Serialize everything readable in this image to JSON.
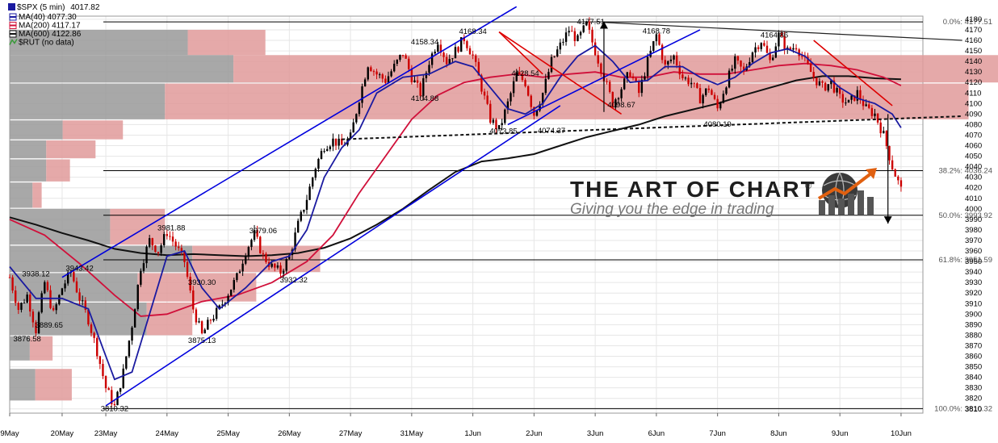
{
  "header": {
    "symbol": "$SPX (5 min)",
    "last": "4017.82",
    "legend": [
      {
        "label": "MA(40)",
        "value": "4077.30",
        "color": "#1a1aa0"
      },
      {
        "label": "MA(200)",
        "value": "4117.17",
        "color": "#d0103a"
      },
      {
        "label": "MA(600)",
        "value": "4122.86",
        "color": "#111111"
      },
      {
        "label": "$RUT (no data)",
        "value": "",
        "color": "#3a9a3a"
      }
    ]
  },
  "watermark": {
    "title": "THE ART OF CHART",
    "registered": "®",
    "tagline": "Giving you the edge in trading"
  },
  "colors": {
    "up_candle": "#000000",
    "down_candle": "#cc0000",
    "ma40": "#1a1aa0",
    "ma200": "#d0103a",
    "ma600": "#111111",
    "channel": "#0000dd",
    "wedge_red": "#dd0000",
    "volume_gray": "#999999",
    "volume_red": "#e09a9a"
  },
  "chart_data": {
    "type": "candlestick",
    "ylim": [
      3806,
      4183
    ],
    "x_ticks": [
      {
        "label": "9May",
        "x": 0
      },
      {
        "label": "20May",
        "x": 6
      },
      {
        "label": "23May",
        "x": 11
      },
      {
        "label": "24May",
        "x": 18
      },
      {
        "label": "25May",
        "x": 25
      },
      {
        "label": "26May",
        "x": 32
      },
      {
        "label": "27May",
        "x": 39
      },
      {
        "label": "31May",
        "x": 46
      },
      {
        "label": "1Jun",
        "x": 53
      },
      {
        "label": "2Jun",
        "x": 60
      },
      {
        "label": "3Jun",
        "x": 67
      },
      {
        "label": "6Jun",
        "x": 74
      },
      {
        "label": "7Jun",
        "x": 81
      },
      {
        "label": "8Jun",
        "x": 88
      },
      {
        "label": "9Jun",
        "x": 95
      },
      {
        "label": "10Jun",
        "x": 102
      }
    ],
    "x_range": [
      0,
      104.5
    ],
    "y_ticks": [
      3810,
      3820,
      3830,
      3840,
      3850,
      3860,
      3870,
      3880,
      3890,
      3900,
      3910,
      3920,
      3930,
      3940,
      3950,
      3960,
      3970,
      3980,
      3990,
      4000,
      4010,
      4020,
      4030,
      4040,
      4050,
      4060,
      4070,
      4080,
      4090,
      4100,
      4110,
      4120,
      4130,
      4140,
      4150,
      4160,
      4170,
      4180
    ],
    "price_path": [
      [
        0,
        3935
      ],
      [
        1,
        3905
      ],
      [
        2,
        3918
      ],
      [
        3,
        3885
      ],
      [
        4,
        3930
      ],
      [
        5,
        3900
      ],
      [
        6,
        3925
      ],
      [
        7,
        3940
      ],
      [
        8,
        3915
      ],
      [
        9,
        3895
      ],
      [
        10,
        3865
      ],
      [
        11,
        3830
      ],
      [
        12,
        3812
      ],
      [
        13,
        3845
      ],
      [
        14,
        3890
      ],
      [
        15,
        3945
      ],
      [
        16,
        3970
      ],
      [
        17,
        3960
      ],
      [
        18,
        3978
      ],
      [
        19,
        3965
      ],
      [
        20,
        3950
      ],
      [
        21,
        3905
      ],
      [
        22,
        3880
      ],
      [
        23,
        3895
      ],
      [
        24,
        3905
      ],
      [
        25,
        3920
      ],
      [
        26,
        3935
      ],
      [
        27,
        3960
      ],
      [
        28,
        3976
      ],
      [
        29,
        3955
      ],
      [
        30,
        3945
      ],
      [
        31,
        3940
      ],
      [
        32,
        3955
      ],
      [
        33,
        3985
      ],
      [
        34,
        4010
      ],
      [
        35,
        4040
      ],
      [
        36,
        4060
      ],
      [
        37,
        4065
      ],
      [
        38,
        4060
      ],
      [
        39,
        4068
      ],
      [
        40,
        4105
      ],
      [
        41,
        4138
      ],
      [
        42,
        4128
      ],
      [
        43,
        4122
      ],
      [
        44,
        4135
      ],
      [
        45,
        4148
      ],
      [
        46,
        4125
      ],
      [
        47,
        4110
      ],
      [
        48,
        4140
      ],
      [
        49,
        4160
      ],
      [
        50,
        4140
      ],
      [
        51,
        4150
      ],
      [
        52,
        4162
      ],
      [
        53,
        4145
      ],
      [
        54,
        4115
      ],
      [
        55,
        4085
      ],
      [
        56,
        4075
      ],
      [
        57,
        4100
      ],
      [
        58,
        4128
      ],
      [
        59,
        4120
      ],
      [
        60,
        4090
      ],
      [
        61,
        4110
      ],
      [
        62,
        4140
      ],
      [
        63,
        4155
      ],
      [
        64,
        4170
      ],
      [
        65,
        4160
      ],
      [
        66,
        4175
      ],
      [
        67,
        4150
      ],
      [
        68,
        4125
      ],
      [
        69,
        4100
      ],
      [
        70,
        4115
      ],
      [
        71,
        4130
      ],
      [
        72,
        4110
      ],
      [
        73,
        4140
      ],
      [
        74,
        4165
      ],
      [
        75,
        4135
      ],
      [
        76,
        4145
      ],
      [
        77,
        4125
      ],
      [
        78,
        4120
      ],
      [
        79,
        4105
      ],
      [
        80,
        4115
      ],
      [
        81,
        4095
      ],
      [
        82,
        4120
      ],
      [
        83,
        4140
      ],
      [
        84,
        4130
      ],
      [
        85,
        4150
      ],
      [
        86,
        4160
      ],
      [
        87,
        4140
      ],
      [
        88,
        4165
      ],
      [
        89,
        4150
      ],
      [
        90,
        4155
      ],
      [
        91,
        4140
      ],
      [
        92,
        4125
      ],
      [
        93,
        4115
      ],
      [
        94,
        4120
      ],
      [
        95,
        4105
      ],
      [
        96,
        4100
      ],
      [
        97,
        4110
      ],
      [
        98,
        4095
      ],
      [
        99,
        4090
      ],
      [
        100,
        4070
      ],
      [
        101,
        4040
      ],
      [
        102,
        4018
      ]
    ],
    "ma40_path": [
      [
        0,
        3945
      ],
      [
        3,
        3915
      ],
      [
        6,
        3915
      ],
      [
        9,
        3905
      ],
      [
        11,
        3860
      ],
      [
        12,
        3838
      ],
      [
        14,
        3845
      ],
      [
        16,
        3900
      ],
      [
        18,
        3955
      ],
      [
        20,
        3960
      ],
      [
        22,
        3925
      ],
      [
        24,
        3905
      ],
      [
        27,
        3925
      ],
      [
        30,
        3950
      ],
      [
        32,
        3955
      ],
      [
        34,
        3980
      ],
      [
        36,
        4030
      ],
      [
        38,
        4058
      ],
      [
        40,
        4075
      ],
      [
        42,
        4110
      ],
      [
        45,
        4125
      ],
      [
        48,
        4128
      ],
      [
        51,
        4140
      ],
      [
        53,
        4135
      ],
      [
        55,
        4115
      ],
      [
        57,
        4095
      ],
      [
        59,
        4090
      ],
      [
        61,
        4100
      ],
      [
        63,
        4125
      ],
      [
        65,
        4145
      ],
      [
        67,
        4155
      ],
      [
        69,
        4140
      ],
      [
        71,
        4120
      ],
      [
        73,
        4122
      ],
      [
        75,
        4135
      ],
      [
        77,
        4135
      ],
      [
        79,
        4125
      ],
      [
        81,
        4118
      ],
      [
        83,
        4125
      ],
      [
        85,
        4138
      ],
      [
        87,
        4148
      ],
      [
        89,
        4152
      ],
      [
        91,
        4145
      ],
      [
        93,
        4130
      ],
      [
        95,
        4115
      ],
      [
        97,
        4105
      ],
      [
        99,
        4100
      ],
      [
        101,
        4090
      ],
      [
        102,
        4077
      ]
    ],
    "ma200_path": [
      [
        0,
        3990
      ],
      [
        4,
        3975
      ],
      [
        8,
        3948
      ],
      [
        12,
        3918
      ],
      [
        15,
        3898
      ],
      [
        18,
        3900
      ],
      [
        22,
        3912
      ],
      [
        26,
        3918
      ],
      [
        30,
        3930
      ],
      [
        34,
        3950
      ],
      [
        37,
        3975
      ],
      [
        40,
        4015
      ],
      [
        43,
        4050
      ],
      [
        46,
        4085
      ],
      [
        49,
        4108
      ],
      [
        52,
        4120
      ],
      [
        55,
        4125
      ],
      [
        58,
        4128
      ],
      [
        61,
        4125
      ],
      [
        64,
        4128
      ],
      [
        67,
        4130
      ],
      [
        70,
        4125
      ],
      [
        73,
        4125
      ],
      [
        76,
        4130
      ],
      [
        79,
        4128
      ],
      [
        82,
        4128
      ],
      [
        85,
        4132
      ],
      [
        88,
        4136
      ],
      [
        91,
        4138
      ],
      [
        94,
        4136
      ],
      [
        97,
        4132
      ],
      [
        100,
        4125
      ],
      [
        102,
        4117
      ]
    ],
    "ma600_path": [
      [
        0,
        3992
      ],
      [
        3,
        3985
      ],
      [
        6,
        3977
      ],
      [
        9,
        3970
      ],
      [
        12,
        3962
      ],
      [
        15,
        3958
      ],
      [
        18,
        3956
      ],
      [
        21,
        3957
      ],
      [
        24,
        3956
      ],
      [
        27,
        3955
      ],
      [
        30,
        3956
      ],
      [
        33,
        3958
      ],
      [
        36,
        3963
      ],
      [
        39,
        3972
      ],
      [
        42,
        3985
      ],
      [
        45,
        4000
      ],
      [
        48,
        4018
      ],
      [
        51,
        4035
      ],
      [
        54,
        4045
      ],
      [
        57,
        4048
      ],
      [
        60,
        4052
      ],
      [
        63,
        4060
      ],
      [
        66,
        4068
      ],
      [
        69,
        4074
      ],
      [
        72,
        4080
      ],
      [
        75,
        4088
      ],
      [
        78,
        4094
      ],
      [
        81,
        4100
      ],
      [
        84,
        4108
      ],
      [
        87,
        4115
      ],
      [
        90,
        4122
      ],
      [
        93,
        4126
      ],
      [
        96,
        4126
      ],
      [
        99,
        4124
      ],
      [
        102,
        4123
      ]
    ],
    "candles": {
      "seed": 7,
      "per_unit": 3
    },
    "horizontal_levels": [
      {
        "y": 4177.51,
        "label": "0.0%: 4177.51"
      },
      {
        "y": 4036.24,
        "label": "38.2%: 4036.24"
      },
      {
        "y": 3993.92,
        "label": "50.0%: 3993.92"
      },
      {
        "y": 3951.59,
        "label": "61.8%: 3951.59"
      },
      {
        "y": 3810.32,
        "label": "100.0%: 3810.32"
      }
    ],
    "trend_lines": [
      {
        "kind": "channel",
        "from": [
          11,
          3813
        ],
        "to": [
          63,
          4098
        ]
      },
      {
        "kind": "channel",
        "from": [
          6,
          3935
        ],
        "to": [
          58,
          4192
        ]
      },
      {
        "kind": "channel",
        "from": [
          57,
          4080
        ],
        "to": [
          79,
          4170
        ]
      },
      {
        "kind": "wedge",
        "from": [
          56,
          4168
        ],
        "to": [
          70,
          4090
        ]
      },
      {
        "kind": "wedge",
        "from": [
          56,
          4168
        ],
        "to": [
          61,
          4128
        ]
      },
      {
        "kind": "resistance",
        "from": [
          68,
          4177
        ],
        "to": [
          109,
          4160
        ]
      },
      {
        "kind": "neckline",
        "from": [
          38,
          4066
        ],
        "to": [
          109,
          4088
        ]
      },
      {
        "kind": "wedge",
        "from": [
          92,
          4160
        ],
        "to": [
          101,
          4098
        ]
      }
    ],
    "arrows": [
      {
        "from": [
          68,
          4092
        ],
        "to": [
          68,
          4178
        ]
      },
      {
        "from": [
          100.5,
          4090
        ],
        "to": [
          100.5,
          3986
        ]
      }
    ],
    "annotations": [
      {
        "x": 2,
        "y": 3876.58,
        "text": "3876.58"
      },
      {
        "x": 4.5,
        "y": 3889.65,
        "text": "3889.65"
      },
      {
        "x": 3,
        "y": 3938.12,
        "text": "3938.12"
      },
      {
        "x": 8,
        "y": 3943.42,
        "text": "3943.42"
      },
      {
        "x": 12,
        "y": 3810.32,
        "text": "3810.32"
      },
      {
        "x": 18.5,
        "y": 3981.88,
        "text": "3981.88"
      },
      {
        "x": 22,
        "y": 3930.3,
        "text": "3930.30"
      },
      {
        "x": 22,
        "y": 3875.13,
        "text": "3875.13"
      },
      {
        "x": 29,
        "y": 3979.06,
        "text": "3979.06"
      },
      {
        "x": 32.5,
        "y": 3932.32,
        "text": "3932.32"
      },
      {
        "x": 47.5,
        "y": 4104.88,
        "text": "4104.88"
      },
      {
        "x": 47.5,
        "y": 4158.34,
        "text": "4158.34"
      },
      {
        "x": 53,
        "y": 4168.34,
        "text": "4168.34"
      },
      {
        "x": 59,
        "y": 4128.54,
        "text": "4128.54"
      },
      {
        "x": 56.5,
        "y": 4073.85,
        "text": "4073.85"
      },
      {
        "x": 62,
        "y": 4074.37,
        "text": "4074.37"
      },
      {
        "x": 66.5,
        "y": 4177.51,
        "text": "4177.51"
      },
      {
        "x": 70,
        "y": 4098.67,
        "text": "4098.67"
      },
      {
        "x": 74,
        "y": 4168.78,
        "text": "4168.78"
      },
      {
        "x": 81,
        "y": 4080.19,
        "text": "4080.19"
      },
      {
        "x": 87.5,
        "y": 4164.86,
        "text": "4164.86"
      }
    ],
    "volume_by_price": [
      {
        "y0": 4146,
        "y1": 4170,
        "gray": 0.195,
        "red": 0.085
      },
      {
        "y0": 4120,
        "y1": 4146,
        "gray": 0.245,
        "red": 0.86
      },
      {
        "y0": 4085,
        "y1": 4119,
        "gray": 0.17,
        "red": 0.88
      },
      {
        "y0": 4066,
        "y1": 4084,
        "gray": 0.058,
        "red": 0.066
      },
      {
        "y0": 4048,
        "y1": 4065,
        "gray": 0.04,
        "red": 0.054
      },
      {
        "y0": 4026,
        "y1": 4047,
        "gray": 0.04,
        "red": 0.026
      },
      {
        "y0": 4001,
        "y1": 4025,
        "gray": 0.025,
        "red": 0.01
      },
      {
        "y0": 3966,
        "y1": 4000,
        "gray": 0.11,
        "red": 0.06
      },
      {
        "y0": 3940,
        "y1": 3965,
        "gray": 0.2,
        "red": 0.14
      },
      {
        "y0": 3912,
        "y1": 3939,
        "gray": 0.14,
        "red": 0.13
      },
      {
        "y0": 3880,
        "y1": 3911,
        "gray": 0.15,
        "red": 0.05
      },
      {
        "y0": 3856,
        "y1": 3879,
        "gray": 0.022,
        "red": 0.025
      },
      {
        "y0": 3818,
        "y1": 3848,
        "gray": 0.028,
        "red": 0.04
      }
    ]
  }
}
